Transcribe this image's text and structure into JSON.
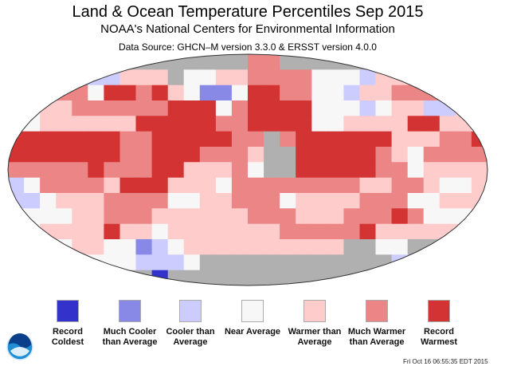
{
  "header": {
    "title": "Land & Ocean Temperature Percentiles Sep 2015",
    "subtitle": "NOAA's National Centers for Environmental Information",
    "source": "Data Source: GHCN–M version 3.3.0 & ERSST version 4.0.0"
  },
  "legend": [
    {
      "label": "Record Coldest",
      "color": "#3333cc"
    },
    {
      "label": "Much Cooler than Average",
      "color": "#8888e6"
    },
    {
      "label": "Cooler than Average",
      "color": "#ccccff"
    },
    {
      "label": "Near Average",
      "color": "#f7f7f7"
    },
    {
      "label": "Warmer than Average",
      "color": "#ffcccc"
    },
    {
      "label": "Much Warmer than Average",
      "color": "#ec8686"
    },
    {
      "label": "Record Warmest",
      "color": "#d33333"
    }
  ],
  "no_data_color": "#b0b0b0",
  "logo": "NOAA",
  "timestamp": "Fri Oct 16 06:55:35 EDT 2015"
}
